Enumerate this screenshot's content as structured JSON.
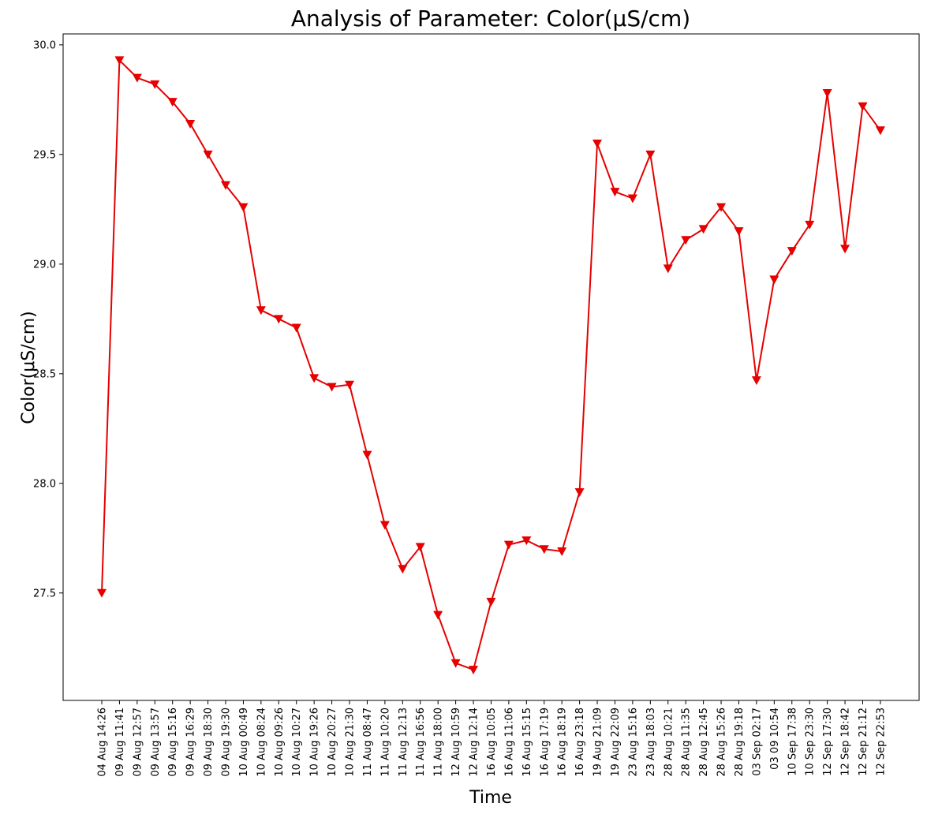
{
  "chart_data": {
    "type": "line",
    "title": "Analysis of Parameter: Color(μS/cm)",
    "xlabel": "Time",
    "ylabel": "Color(μS/cm)",
    "ylim": [
      27.01,
      30.05
    ],
    "yticks": [
      27.5,
      28.0,
      28.5,
      29.0,
      29.5,
      30.0
    ],
    "ytick_labels": [
      "27.5",
      "28.0",
      "28.5",
      "29.0",
      "29.5",
      "30.0"
    ],
    "grid": false,
    "line_color": "#e60000",
    "marker": "triangle-down",
    "categories": [
      "04 Aug 14:26",
      "09 Aug 11:41",
      "09 Aug 12:57",
      "09 Aug 13:57",
      "09 Aug 15:16",
      "09 Aug 16:29",
      "09 Aug 18:30",
      "09 Aug 19:30",
      "10 Aug 00:49",
      "10 Aug 08:24",
      "10 Aug 09:26",
      "10 Aug 10:27",
      "10 Aug 19:26",
      "10 Aug 20:27",
      "10 Aug 21:30",
      "11 Aug 08:47",
      "11 Aug 10:20",
      "11 Aug 12:13",
      "11 Aug 16:56",
      "11 Aug 18:00",
      "12 Aug 10:59",
      "12 Aug 12:14",
      "16 Aug 10:05",
      "16 Aug 11:06",
      "16 Aug 15:15",
      "16 Aug 17:19",
      "16 Aug 18:19",
      "16 Aug 23:18",
      "19 Aug 21:09",
      "19 Aug 22:09",
      "23 Aug 15:16",
      "23 Aug 18:03",
      "28 Aug 10:21",
      "28 Aug 11:35",
      "28 Aug 12:45",
      "28 Aug 15:26",
      "28 Aug 19:18",
      "03 Sep 02:17",
      "03 09 10:54",
      "10 Sep 17:38",
      "10 Sep 23:30",
      "12 Sep 17:30",
      "12 Sep 18:42",
      "12 Sep 21:12",
      "12 Sep 22:53"
    ],
    "series": [
      {
        "values": [
          27.5,
          29.93,
          29.85,
          29.82,
          29.74,
          29.64,
          29.5,
          29.36,
          29.26,
          28.79,
          28.75,
          28.71,
          28.48,
          28.44,
          28.45,
          28.13,
          27.81,
          27.61,
          27.71,
          27.4,
          27.18,
          27.15,
          27.46,
          27.72,
          27.74,
          27.7,
          27.69,
          27.96,
          29.55,
          29.33,
          29.3,
          29.5,
          28.98,
          29.11,
          29.16,
          29.26,
          29.15,
          28.47,
          28.93,
          29.06,
          29.18,
          29.78,
          29.07,
          29.72,
          29.61
        ]
      }
    ]
  }
}
